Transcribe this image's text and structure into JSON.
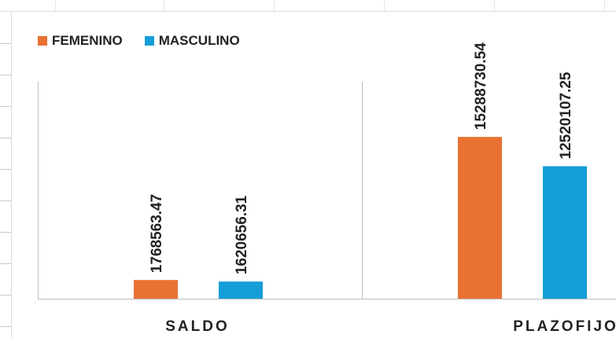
{
  "chart_data": {
    "type": "bar",
    "categories": [
      "SALDO",
      "PLAZOFIJO"
    ],
    "series": [
      {
        "name": "FEMENINO",
        "color": "#e97132",
        "values": [
          1768563.47,
          15288730.54
        ]
      },
      {
        "name": "MASCULINO",
        "color": "#159dd8",
        "values": [
          1620656.31,
          12520107.25
        ]
      }
    ],
    "data_labels": [
      [
        "1768563.47",
        "15288730.54"
      ],
      [
        "1620656.31",
        "12520107.25"
      ]
    ],
    "title": "",
    "xlabel": "",
    "ylabel": "",
    "ylim": [
      0,
      26000000
    ],
    "grid": false,
    "legend_position": "top-left"
  }
}
